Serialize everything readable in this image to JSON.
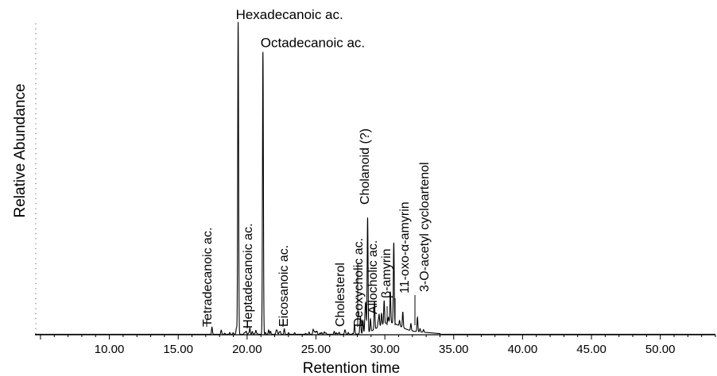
{
  "chart_data": {
    "type": "line",
    "title": "",
    "xlabel": "Retention time",
    "ylabel": "Relative Abundance",
    "xlim": [
      4.6,
      54.0
    ],
    "ylim": [
      0,
      100
    ],
    "x_ticks": [
      10.0,
      15.0,
      20.0,
      25.0,
      30.0,
      35.0,
      40.0,
      45.0,
      50.0
    ],
    "x_tick_labels": [
      "10.00",
      "15.00",
      "20.00",
      "25.00",
      "30.00",
      "35.00",
      "40.00",
      "45.00",
      "50.00"
    ],
    "grid": false,
    "legend": "none",
    "line_color": "#000000",
    "peaks": [
      {
        "name": "Tetradecanoic ac.",
        "x": 17.45,
        "y": 2.3
      },
      {
        "name": "Hexadecanoic ac.",
        "x": 19.35,
        "y": 100.0
      },
      {
        "name": "Heptadecanoic ac.",
        "x": 20.2,
        "y": 2.0
      },
      {
        "name": "Octadecanoic ac.",
        "x": 21.15,
        "y": 91.0
      },
      {
        "name": "Eicosanoic ac.",
        "x": 22.7,
        "y": 1.8
      },
      {
        "name": "Cholesterol",
        "x": 27.8,
        "y": 3.0
      },
      {
        "name": "Deoxycholic ac.",
        "x": 28.6,
        "y": 6.0
      },
      {
        "name": "Cholanoid (?)",
        "x": 28.75,
        "y": 37.0
      },
      {
        "name": "Allocholic ac.",
        "x": 29.25,
        "y": 9.0
      },
      {
        "name": "β-amyrin",
        "x": 29.95,
        "y": 7.5
      },
      {
        "name": "11-oxo-α-amyrin",
        "x": 30.4,
        "y": 10.0
      },
      {
        "name": "3-O-acetyl cycloartenol",
        "x": 30.65,
        "y": 26.0
      }
    ]
  }
}
